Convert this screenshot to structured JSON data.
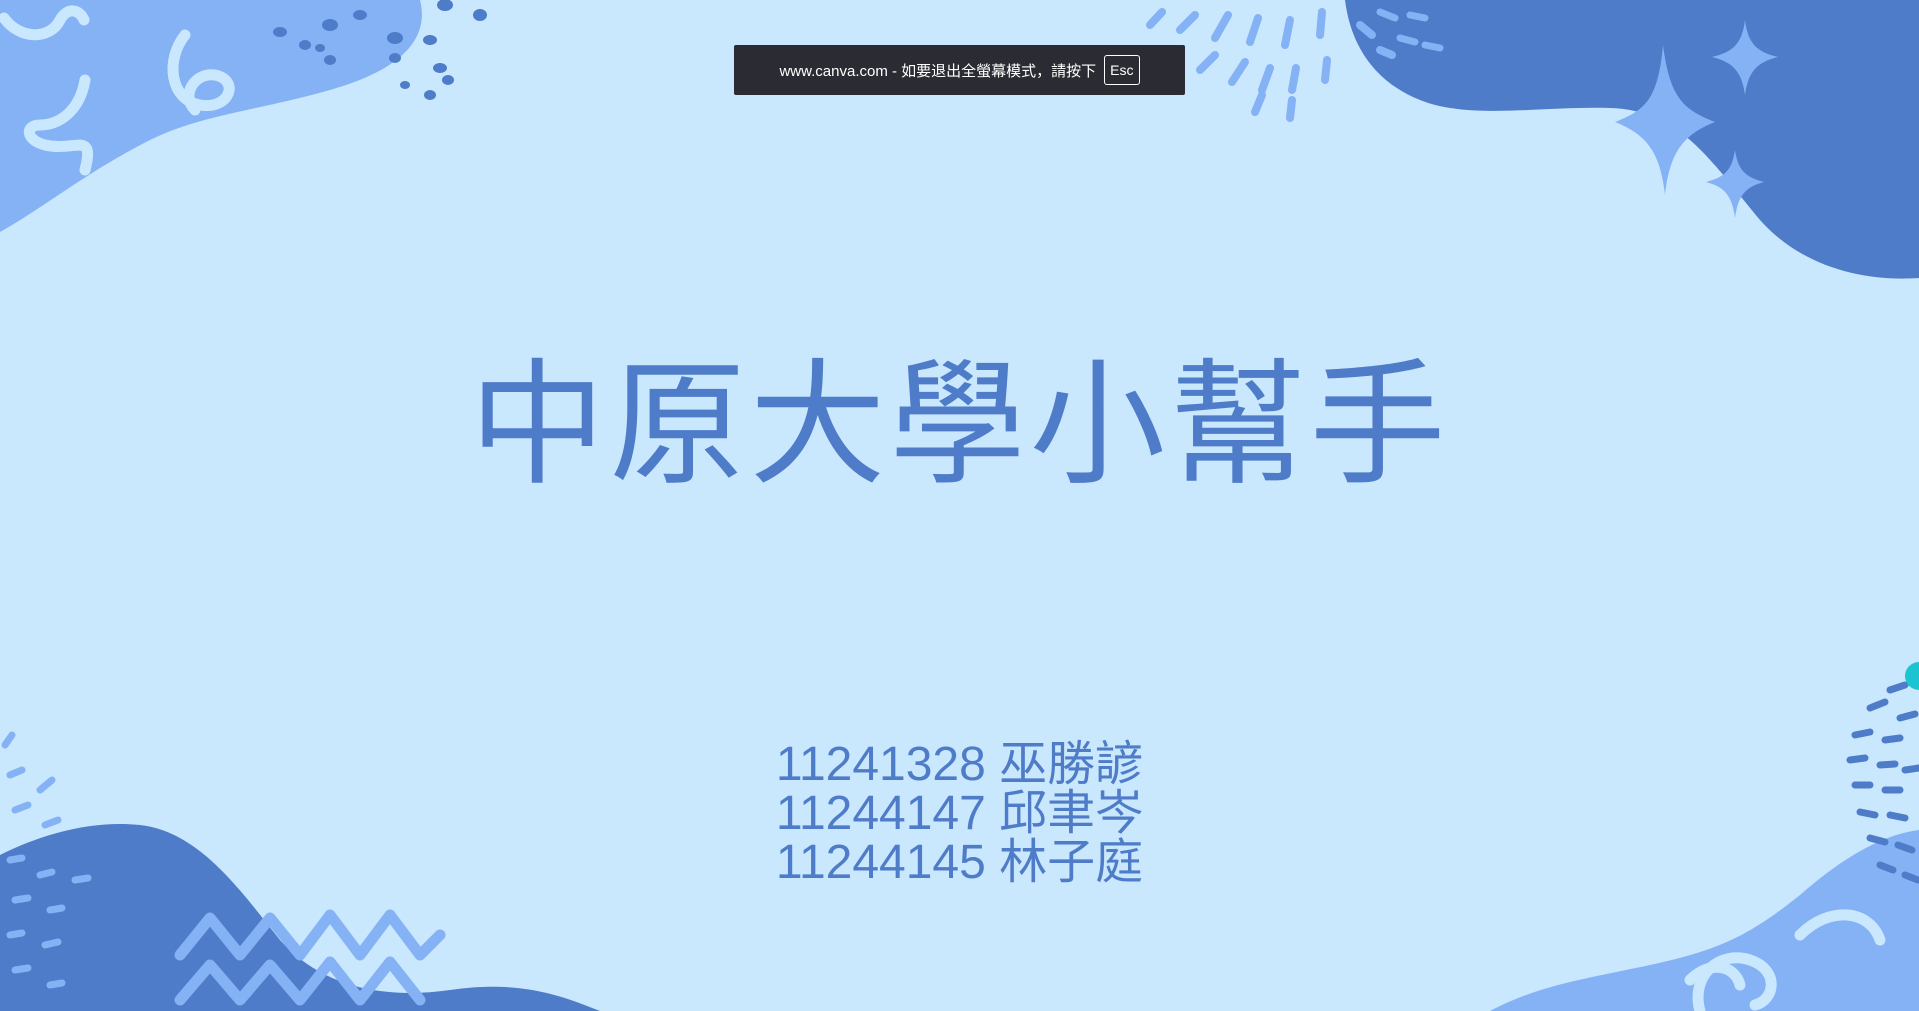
{
  "fullscreen_notice": {
    "message": "www.canva.com - 如要退出全螢幕模式，請按下",
    "key": "Esc"
  },
  "slide": {
    "title": "中原大學小幫手",
    "members": [
      {
        "id": "11241328",
        "name": "巫勝諺"
      },
      {
        "id": "11244147",
        "name": "邱聿岑"
      },
      {
        "id": "11244145",
        "name": "林子庭"
      }
    ]
  },
  "colors": {
    "background": "#c9e7fd",
    "dark_blob": "#4f7cc9",
    "light_blob": "#84b2f5",
    "text": "#4f7cc9",
    "accent_dot": "#1cc3d0"
  }
}
